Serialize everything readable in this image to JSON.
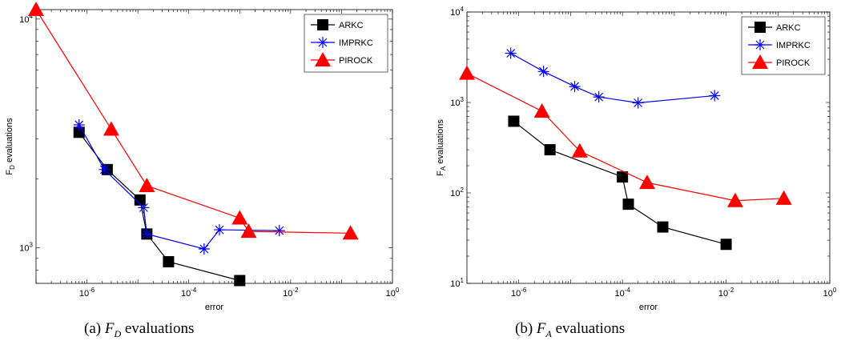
{
  "chart_data": [
    {
      "type": "line",
      "xscale": "log",
      "yscale": "log",
      "xlim": [
        1e-07,
        1
      ],
      "ylim": [
        700,
        11000
      ],
      "xticks": [
        1e-06,
        0.0001,
        0.01,
        1
      ],
      "xtick_labels": [
        "10^-6",
        "10^-4",
        "10^-2",
        "10^0"
      ],
      "yticks": [
        1000,
        10000
      ],
      "ytick_labels": [
        "10^3",
        "10^4"
      ],
      "xlabel": "error",
      "ylabel": "F_D evaluations",
      "legend_position": "top-right",
      "series": [
        {
          "name": "ARKC",
          "color": "#000000",
          "marker": "square",
          "x": [
            7e-07,
            2.5e-06,
            1.1e-05,
            1.5e-05,
            4e-05,
            0.001
          ],
          "y": [
            3200,
            2200,
            1620,
            1150,
            870,
            720
          ]
        },
        {
          "name": "IMPRKC",
          "color": "#0000ff",
          "marker": "star",
          "x": [
            7e-07,
            2.2e-06,
            1.3e-05,
            1.5e-05,
            0.0002,
            0.0004,
            0.006
          ],
          "y": [
            3450,
            2200,
            1500,
            1150,
            990,
            1200,
            1190
          ]
        },
        {
          "name": "PIROCK",
          "color": "#ff0000",
          "marker": "triangle",
          "x": [
            1e-07,
            3e-06,
            1.5e-05,
            0.001,
            0.0015,
            0.15
          ],
          "y": [
            11000,
            3300,
            1870,
            1350,
            1180,
            1160
          ]
        }
      ]
    },
    {
      "type": "line",
      "xscale": "log",
      "yscale": "log",
      "xlim": [
        1e-07,
        1
      ],
      "ylim": [
        10,
        10000
      ],
      "xticks": [
        1e-06,
        0.0001,
        0.01,
        1
      ],
      "xtick_labels": [
        "10^-6",
        "10^-4",
        "10^-2",
        "10^0"
      ],
      "yticks": [
        10,
        100,
        1000,
        10000
      ],
      "ytick_labels": [
        "10^1",
        "10^2",
        "10^3",
        "10^4"
      ],
      "xlabel": "error",
      "ylabel": "F_A evaluations",
      "legend_position": "top-right",
      "series": [
        {
          "name": "ARKC",
          "color": "#000000",
          "marker": "square",
          "x": [
            8e-07,
            4e-06,
            0.0001,
            0.00013,
            0.0006,
            0.01
          ],
          "y": [
            620,
            300,
            150,
            75,
            42,
            27
          ]
        },
        {
          "name": "IMPRKC",
          "color": "#0000ff",
          "marker": "star",
          "x": [
            7e-07,
            3e-06,
            1.2e-05,
            3.5e-05,
            0.0002,
            0.006
          ],
          "y": [
            3500,
            2200,
            1500,
            1150,
            990,
            1190
          ]
        },
        {
          "name": "PIROCK",
          "color": "#ff0000",
          "marker": "triangle",
          "x": [
            1e-07,
            2.8e-06,
            1.5e-05,
            0.0003,
            0.015,
            0.13
          ],
          "y": [
            2100,
            800,
            290,
            130,
            82,
            87
          ]
        }
      ]
    }
  ],
  "captions": [
    {
      "prefix": "(a)",
      "sym": "F",
      "sub": "D",
      "rest": "evaluations"
    },
    {
      "prefix": "(b)",
      "sym": "F",
      "sub": "A",
      "rest": "evaluations"
    }
  ]
}
